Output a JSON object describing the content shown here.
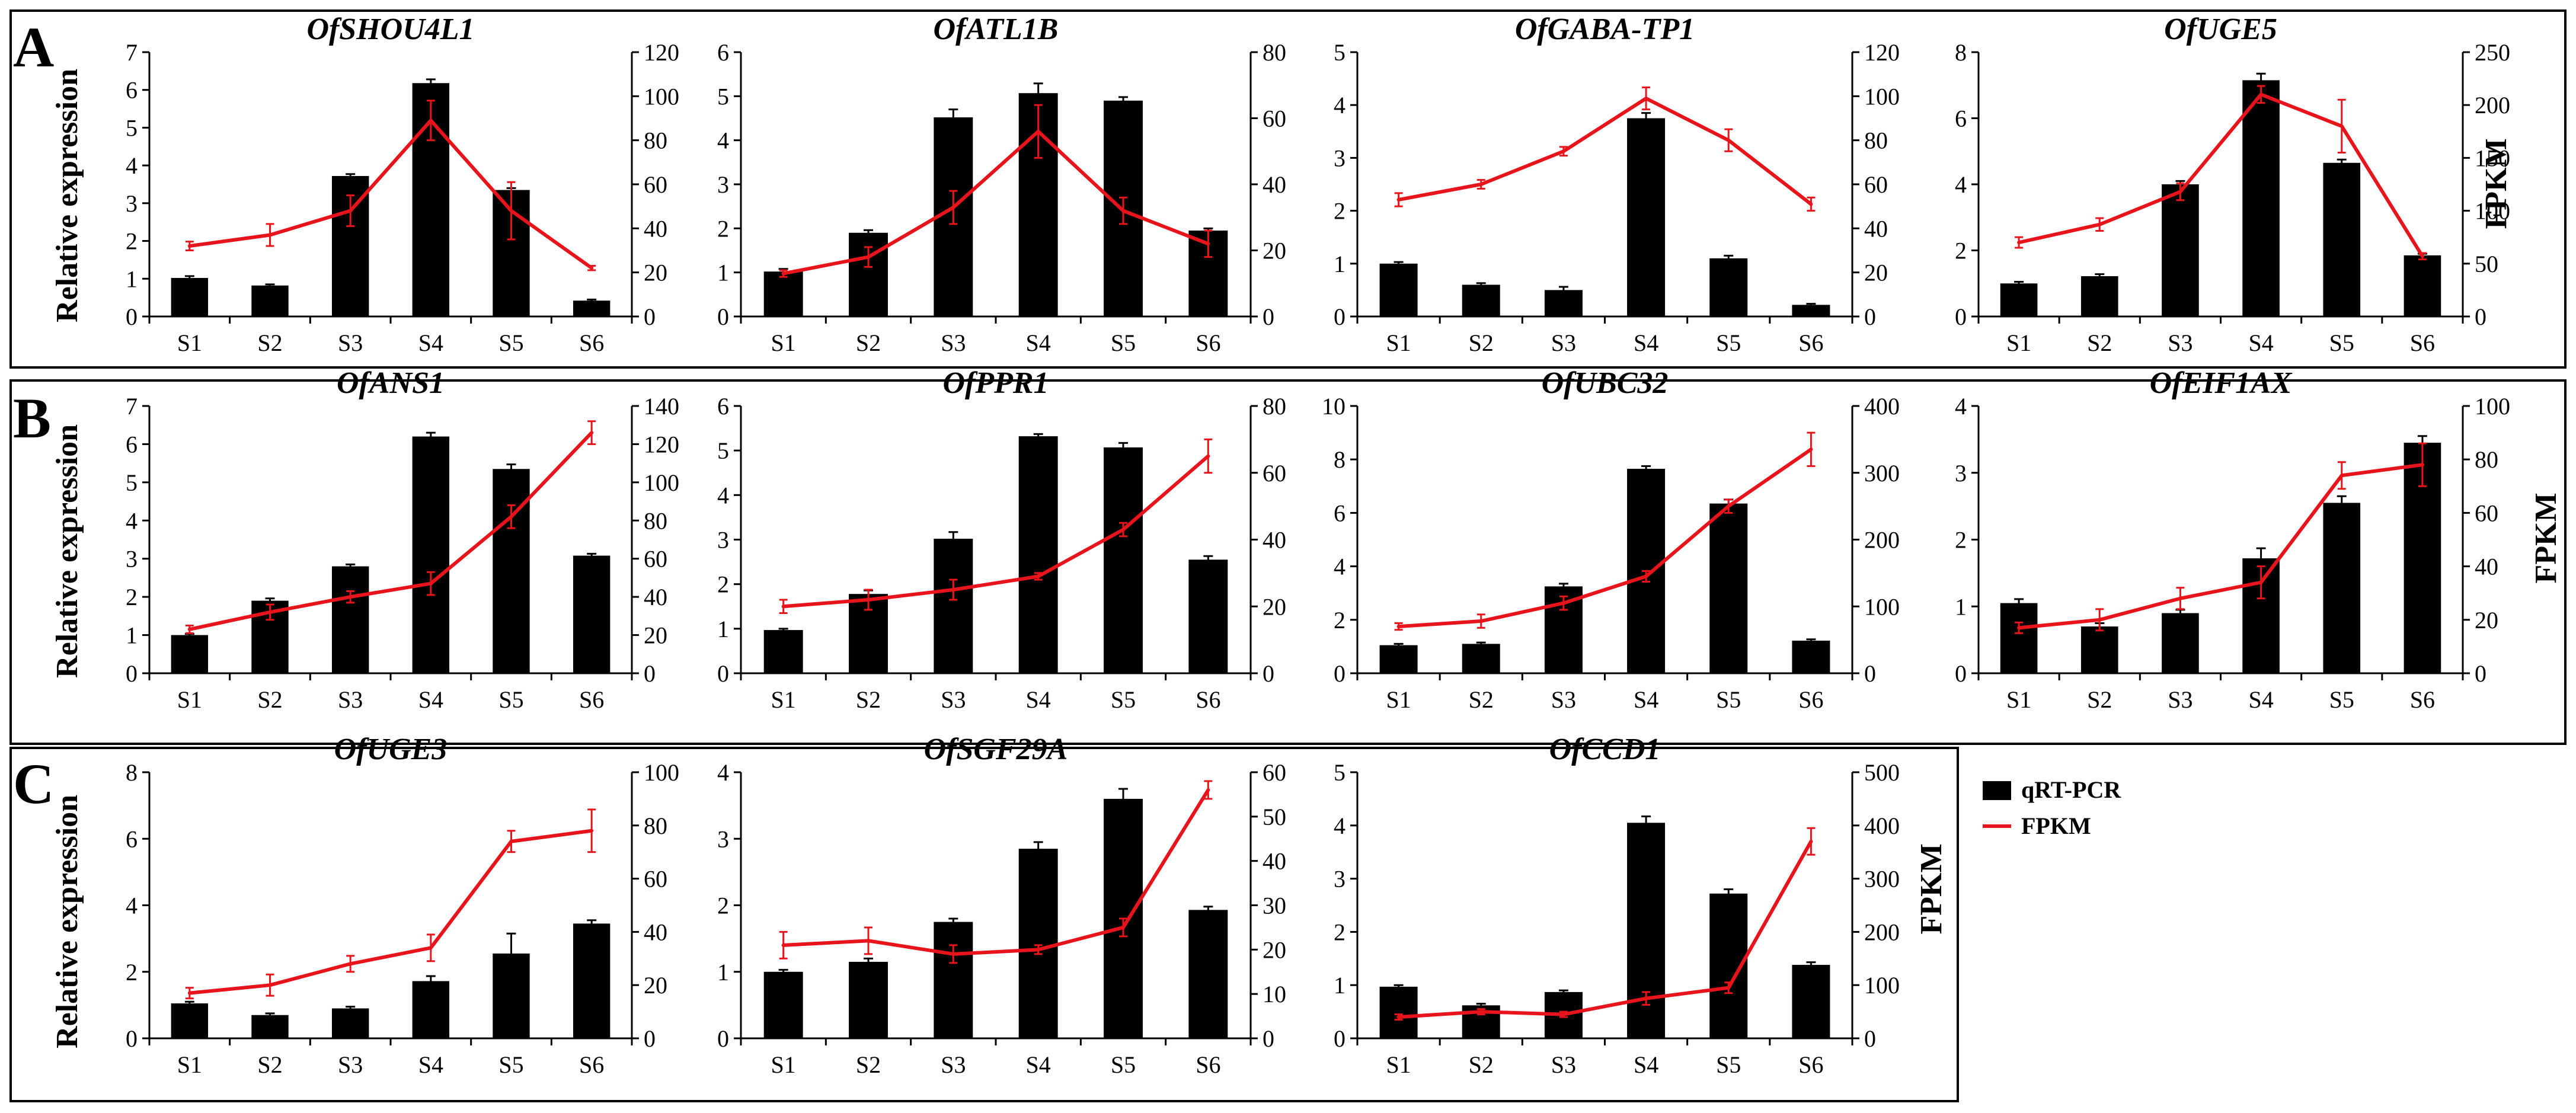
{
  "figure": {
    "panels": [
      {
        "letter": "A",
        "ylabel": "Relative expression",
        "y2label": "FPKM"
      },
      {
        "letter": "B",
        "ylabel": "Relative expression",
        "y2label": "FPKM"
      },
      {
        "letter": "C",
        "ylabel": "Relative expression",
        "y2label": "FPKM"
      }
    ],
    "legend": [
      {
        "label": "qRT-PCR",
        "color": "#000000",
        "kind": "bar"
      },
      {
        "label": "FPKM",
        "color": "#e8141b",
        "kind": "line"
      }
    ]
  },
  "chart_data": [
    {
      "type": "bar",
      "title": "OfSHOU4L1",
      "categories": [
        "S1",
        "S2",
        "S3",
        "S4",
        "S5",
        "S6"
      ],
      "series": [
        {
          "name": "qRT-PCR",
          "axis": "left",
          "values": [
            1.02,
            0.82,
            3.72,
            6.18,
            3.35,
            0.42
          ],
          "errors": [
            0.05,
            0.03,
            0.05,
            0.1,
            0.05,
            0.03
          ]
        },
        {
          "name": "FPKM",
          "axis": "right",
          "type": "line",
          "values": [
            32,
            37,
            48,
            89,
            48,
            22
          ],
          "errors": [
            2,
            5,
            7,
            9,
            13,
            1
          ]
        }
      ],
      "ylim": [
        0,
        7
      ],
      "yticks": [
        0,
        1,
        2,
        3,
        4,
        5,
        6,
        7
      ],
      "y2lim": [
        0,
        120
      ],
      "y2ticks": [
        0,
        20,
        40,
        60,
        80,
        100,
        120
      ]
    },
    {
      "type": "bar",
      "title": "OfATL1B",
      "categories": [
        "S1",
        "S2",
        "S3",
        "S4",
        "S5",
        "S6"
      ],
      "series": [
        {
          "name": "qRT-PCR",
          "axis": "left",
          "values": [
            1.02,
            1.9,
            4.52,
            5.07,
            4.9,
            1.95
          ],
          "errors": [
            0.06,
            0.06,
            0.18,
            0.22,
            0.08,
            0.05
          ]
        },
        {
          "name": "FPKM",
          "axis": "right",
          "type": "line",
          "values": [
            13,
            18,
            33,
            56,
            32,
            22
          ],
          "errors": [
            1,
            3,
            5,
            8,
            4,
            4
          ]
        }
      ],
      "ylim": [
        0,
        6
      ],
      "yticks": [
        0,
        1,
        2,
        3,
        4,
        5,
        6
      ],
      "y2lim": [
        0,
        80
      ],
      "y2ticks": [
        0,
        20,
        40,
        60,
        80
      ]
    },
    {
      "type": "bar",
      "title": "OfGABA-TP1",
      "categories": [
        "S1",
        "S2",
        "S3",
        "S4",
        "S5",
        "S6"
      ],
      "series": [
        {
          "name": "qRT-PCR",
          "axis": "left",
          "values": [
            1.0,
            0.6,
            0.5,
            3.75,
            1.1,
            0.22
          ],
          "errors": [
            0.03,
            0.03,
            0.06,
            0.1,
            0.05,
            0.02
          ]
        },
        {
          "name": "FPKM",
          "axis": "right",
          "type": "line",
          "values": [
            53,
            60,
            75,
            99,
            80,
            51
          ],
          "errors": [
            3,
            2,
            2,
            5,
            5,
            3
          ]
        }
      ],
      "ylim": [
        0,
        5
      ],
      "yticks": [
        0,
        1,
        2,
        3,
        4,
        5
      ],
      "y2lim": [
        0,
        120
      ],
      "y2ticks": [
        0,
        20,
        40,
        60,
        80,
        100,
        120
      ]
    },
    {
      "type": "bar",
      "title": "OfUGE5",
      "categories": [
        "S1",
        "S2",
        "S3",
        "S4",
        "S5",
        "S6"
      ],
      "series": [
        {
          "name": "qRT-PCR",
          "axis": "left",
          "values": [
            1.0,
            1.22,
            4.0,
            7.15,
            4.65,
            1.85
          ],
          "errors": [
            0.05,
            0.06,
            0.1,
            0.2,
            0.1,
            0.05
          ]
        },
        {
          "name": "FPKM",
          "axis": "right",
          "type": "line",
          "values": [
            70,
            87,
            118,
            210,
            180,
            57
          ],
          "errors": [
            5,
            6,
            8,
            8,
            25,
            3
          ]
        }
      ],
      "ylim": [
        0,
        8
      ],
      "yticks": [
        0,
        2,
        4,
        6,
        8
      ],
      "y2lim": [
        0,
        250
      ],
      "y2ticks": [
        0,
        50,
        100,
        150,
        200,
        250
      ]
    },
    {
      "type": "bar",
      "title": "OfANS1",
      "categories": [
        "S1",
        "S2",
        "S3",
        "S4",
        "S5",
        "S6"
      ],
      "series": [
        {
          "name": "qRT-PCR",
          "axis": "left",
          "values": [
            1.0,
            1.9,
            2.8,
            6.2,
            5.35,
            3.08
          ],
          "errors": [
            0.03,
            0.06,
            0.05,
            0.1,
            0.12,
            0.05
          ]
        },
        {
          "name": "FPKM",
          "axis": "right",
          "type": "line",
          "values": [
            23,
            32,
            40,
            47,
            82,
            126
          ],
          "errors": [
            2,
            4,
            3,
            6,
            6,
            6
          ]
        }
      ],
      "ylim": [
        0,
        7
      ],
      "yticks": [
        0,
        1,
        2,
        3,
        4,
        5,
        6,
        7
      ],
      "y2lim": [
        0,
        140
      ],
      "y2ticks": [
        0,
        20,
        40,
        60,
        80,
        100,
        120,
        140
      ]
    },
    {
      "type": "bar",
      "title": "OfPPR1",
      "categories": [
        "S1",
        "S2",
        "S3",
        "S4",
        "S5",
        "S6"
      ],
      "series": [
        {
          "name": "qRT-PCR",
          "axis": "left",
          "values": [
            0.97,
            1.78,
            3.02,
            5.32,
            5.07,
            2.55
          ],
          "errors": [
            0.03,
            0.08,
            0.15,
            0.05,
            0.1,
            0.08
          ]
        },
        {
          "name": "FPKM",
          "axis": "right",
          "type": "line",
          "values": [
            20,
            22,
            25,
            29,
            43,
            65
          ],
          "errors": [
            2,
            3,
            3,
            1,
            2,
            5
          ]
        }
      ],
      "ylim": [
        0,
        6
      ],
      "yticks": [
        0,
        1,
        2,
        3,
        4,
        5,
        6
      ],
      "y2lim": [
        0,
        80
      ],
      "y2ticks": [
        0,
        20,
        40,
        60,
        80
      ]
    },
    {
      "type": "bar",
      "title": "OfUBC32",
      "categories": [
        "S1",
        "S2",
        "S3",
        "S4",
        "S5",
        "S6"
      ],
      "series": [
        {
          "name": "qRT-PCR",
          "axis": "left",
          "values": [
            1.05,
            1.1,
            3.25,
            7.65,
            6.35,
            1.22
          ],
          "errors": [
            0.05,
            0.05,
            0.1,
            0.1,
            0.15,
            0.05
          ]
        },
        {
          "name": "FPKM",
          "axis": "right",
          "type": "line",
          "values": [
            70,
            78,
            105,
            145,
            250,
            335
          ],
          "errors": [
            5,
            10,
            10,
            8,
            10,
            25
          ]
        }
      ],
      "ylim": [
        0,
        10
      ],
      "yticks": [
        0,
        2,
        4,
        6,
        8,
        10
      ],
      "y2lim": [
        0,
        400
      ],
      "y2ticks": [
        0,
        100,
        200,
        300,
        400
      ]
    },
    {
      "type": "bar",
      "title": "OfEIF1AX",
      "categories": [
        "S1",
        "S2",
        "S3",
        "S4",
        "S5",
        "S6"
      ],
      "series": [
        {
          "name": "qRT-PCR",
          "axis": "left",
          "values": [
            1.05,
            0.7,
            0.9,
            1.72,
            2.55,
            3.45
          ],
          "errors": [
            0.06,
            0.05,
            0.05,
            0.15,
            0.1,
            0.1
          ]
        },
        {
          "name": "FPKM",
          "axis": "right",
          "type": "line",
          "values": [
            17,
            20,
            28,
            34,
            74,
            78
          ],
          "errors": [
            2,
            4,
            4,
            6,
            5,
            8
          ]
        }
      ],
      "ylim": [
        0,
        4
      ],
      "yticks": [
        0,
        1,
        2,
        3,
        4
      ],
      "y2lim": [
        0,
        100
      ],
      "y2ticks": [
        0,
        20,
        40,
        60,
        80,
        100
      ]
    },
    {
      "type": "bar",
      "title": "OfUGE3",
      "categories": [
        "S1",
        "S2",
        "S3",
        "S4",
        "S5",
        "S6"
      ],
      "series": [
        {
          "name": "qRT-PCR",
          "axis": "left",
          "values": [
            1.05,
            0.7,
            0.9,
            1.72,
            2.55,
            3.45
          ],
          "errors": [
            0.05,
            0.05,
            0.05,
            0.15,
            0.6,
            0.1
          ]
        },
        {
          "name": "FPKM",
          "axis": "right",
          "type": "line",
          "values": [
            17,
            20,
            28,
            34,
            74,
            78
          ],
          "errors": [
            2,
            4,
            3,
            5,
            4,
            8
          ]
        }
      ],
      "ylim": [
        0,
        8
      ],
      "yticks": [
        0,
        2,
        4,
        6,
        8
      ],
      "y2lim": [
        0,
        100
      ],
      "y2ticks": [
        0,
        20,
        40,
        60,
        80,
        100
      ]
    },
    {
      "type": "bar",
      "title": "OfSGF29A",
      "categories": [
        "S1",
        "S2",
        "S3",
        "S4",
        "S5",
        "S6"
      ],
      "series": [
        {
          "name": "qRT-PCR",
          "axis": "left",
          "values": [
            1.0,
            1.15,
            1.75,
            2.85,
            3.6,
            1.93
          ],
          "errors": [
            0.03,
            0.05,
            0.05,
            0.1,
            0.15,
            0.05
          ]
        },
        {
          "name": "FPKM",
          "axis": "right",
          "type": "line",
          "values": [
            21,
            22,
            19,
            20,
            25,
            56
          ],
          "errors": [
            3,
            3,
            2,
            1,
            2,
            2
          ]
        }
      ],
      "ylim": [
        0,
        4
      ],
      "yticks": [
        0,
        1,
        2,
        3,
        4
      ],
      "y2lim": [
        0,
        60
      ],
      "y2ticks": [
        0,
        10,
        20,
        30,
        40,
        50,
        60
      ]
    },
    {
      "type": "bar",
      "title": "OfCCD1",
      "categories": [
        "S1",
        "S2",
        "S3",
        "S4",
        "S5",
        "S6"
      ],
      "series": [
        {
          "name": "qRT-PCR",
          "axis": "left",
          "values": [
            0.97,
            0.62,
            0.87,
            4.05,
            2.72,
            1.38
          ],
          "errors": [
            0.03,
            0.03,
            0.03,
            0.12,
            0.08,
            0.05
          ]
        },
        {
          "name": "FPKM",
          "axis": "right",
          "type": "line",
          "values": [
            40,
            50,
            45,
            75,
            95,
            370
          ],
          "errors": [
            5,
            5,
            5,
            12,
            10,
            25
          ]
        }
      ],
      "ylim": [
        0,
        5
      ],
      "yticks": [
        0,
        1,
        2,
        3,
        4,
        5
      ],
      "y2lim": [
        0,
        500
      ],
      "y2ticks": [
        0,
        100,
        200,
        300,
        400,
        500
      ]
    }
  ]
}
